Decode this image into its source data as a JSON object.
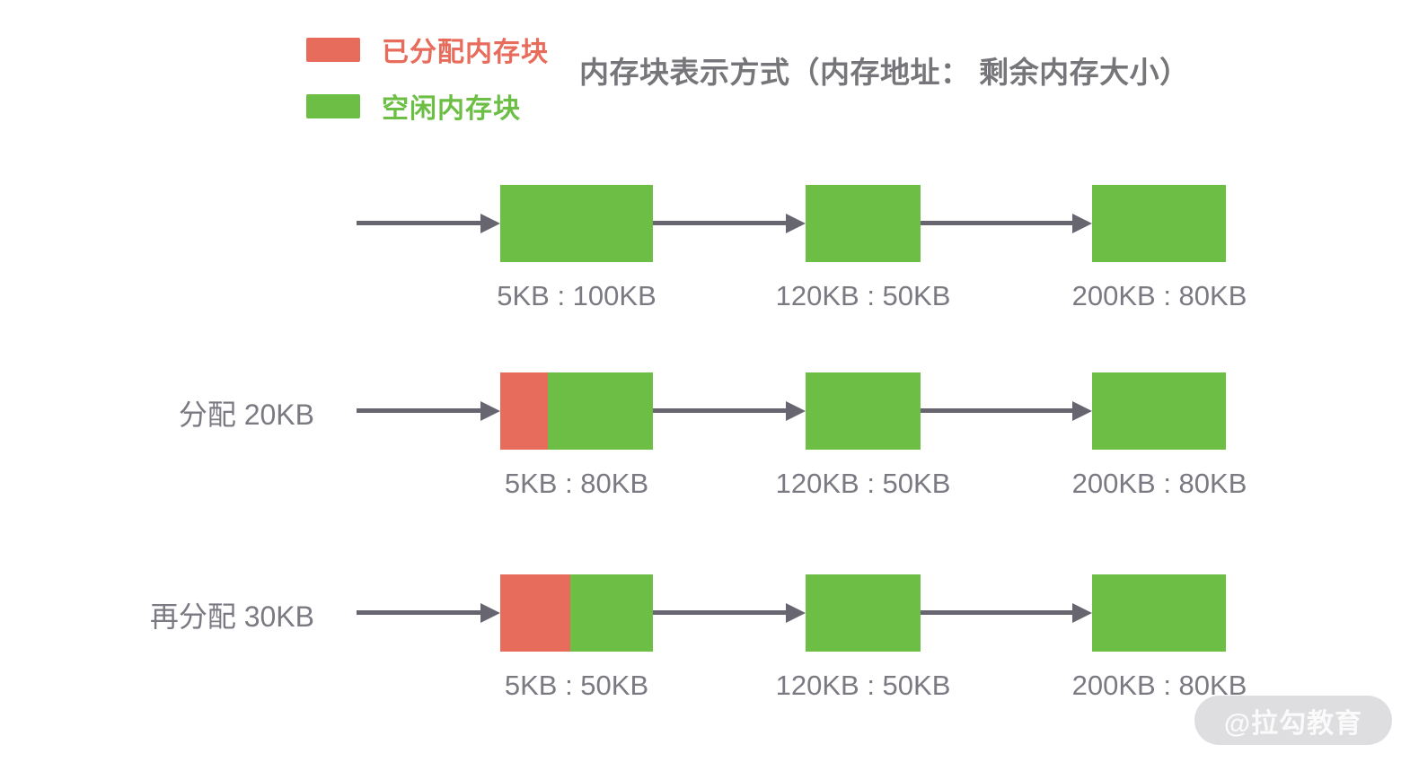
{
  "title": "内存块表示方式（内存地址： 剩余内存大小）",
  "legend": {
    "allocated_label": "已分配内存块",
    "free_label": "空闲内存块"
  },
  "colors": {
    "allocated_block": "#E86C5B",
    "free_block": "#6DBE45",
    "arrow": "#676670",
    "label_text": "#7B7A82"
  },
  "rows": [
    {
      "label": "",
      "nodes": [
        {
          "caption": "5KB : 100KB",
          "allocated_pct": 0
        },
        {
          "caption": "120KB : 50KB",
          "allocated_pct": 0
        },
        {
          "caption": "200KB : 80KB",
          "allocated_pct": 0
        }
      ]
    },
    {
      "label": "分配 20KB",
      "nodes": [
        {
          "caption": "5KB : 80KB",
          "allocated_pct": 31
        },
        {
          "caption": "120KB : 50KB",
          "allocated_pct": 0
        },
        {
          "caption": "200KB : 80KB",
          "allocated_pct": 0
        }
      ]
    },
    {
      "label": "再分配 30KB",
      "nodes": [
        {
          "caption": "5KB : 50KB",
          "allocated_pct": 46
        },
        {
          "caption": "120KB : 50KB",
          "allocated_pct": 0
        },
        {
          "caption": "200KB : 80KB",
          "allocated_pct": 0
        }
      ]
    }
  ],
  "watermark": "@拉勾教育"
}
